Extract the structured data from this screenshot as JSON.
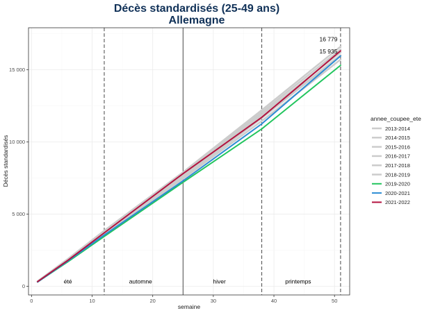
{
  "chart_data": {
    "type": "line",
    "title": "Décès standardisés (25-49 ans)",
    "subtitle": "Allemagne",
    "xlabel": "semaine",
    "ylabel": "Décès standardisés",
    "xlim": [
      -0.5,
      52.5
    ],
    "ylim": [
      -600,
      17900
    ],
    "x_ticks": [
      0,
      10,
      20,
      30,
      40,
      50
    ],
    "x_tick_labels": [
      "0",
      "10",
      "20",
      "30",
      "40",
      "50"
    ],
    "y_ticks": [
      0,
      5000,
      10000,
      15000
    ],
    "y_tick_labels": [
      "0",
      "5 000",
      "10 000",
      "15 000"
    ],
    "grid": true,
    "legend_position": "right",
    "legend_title": "annee_coupee_ete",
    "vlines": [
      {
        "x": 12,
        "style": "dashed"
      },
      {
        "x": 25,
        "style": "solid"
      },
      {
        "x": 38,
        "style": "dashed"
      },
      {
        "x": 51,
        "style": "dashed"
      }
    ],
    "season_labels": [
      {
        "text": "été",
        "x": 6,
        "y": 200
      },
      {
        "text": "automne",
        "x": 18,
        "y": 200
      },
      {
        "text": "hiver",
        "x": 31,
        "y": 200
      },
      {
        "text": "printemps",
        "x": 44,
        "y": 200
      }
    ],
    "annotations": [
      {
        "text": "16 779",
        "x": 49,
        "y": 16779
      },
      {
        "text": "15 935",
        "x": 49,
        "y": 15935
      }
    ],
    "series": [
      {
        "name": "2013-2014",
        "color": "#cccccc",
        "width": 2.5,
        "x": [
          1,
          6,
          12,
          25,
          38,
          51
        ],
        "y": [
          350,
          1900,
          3850,
          7900,
          12200,
          16600
        ]
      },
      {
        "name": "2014-2015",
        "color": "#cccccc",
        "width": 2.5,
        "x": [
          1,
          6,
          12,
          25,
          38,
          51
        ],
        "y": [
          350,
          1880,
          3800,
          7800,
          12050,
          16400
        ]
      },
      {
        "name": "2015-2016",
        "color": "#cccccc",
        "width": 2.5,
        "x": [
          1,
          6,
          12,
          25,
          38,
          51
        ],
        "y": [
          340,
          1850,
          3750,
          7700,
          11900,
          16200
        ]
      },
      {
        "name": "2016-2017",
        "color": "#cccccc",
        "width": 2.5,
        "x": [
          1,
          6,
          12,
          25,
          38,
          51
        ],
        "y": [
          330,
          1820,
          3700,
          7600,
          11750,
          16000
        ]
      },
      {
        "name": "2017-2018",
        "color": "#cccccc",
        "width": 2.5,
        "x": [
          1,
          6,
          12,
          25,
          38,
          51
        ],
        "y": [
          330,
          1800,
          3650,
          7550,
          11650,
          15950
        ]
      },
      {
        "name": "2018-2019",
        "color": "#cccccc",
        "width": 2.5,
        "x": [
          1,
          6,
          12,
          25,
          38,
          51
        ],
        "y": [
          320,
          1780,
          3600,
          7450,
          11450,
          15700
        ]
      },
      {
        "name": "2019-2020",
        "color": "#22c55e",
        "width": 2,
        "x": [
          1,
          6,
          12,
          25,
          38,
          51
        ],
        "y": [
          300,
          1700,
          3450,
          7200,
          10900,
          15300
        ]
      },
      {
        "name": "2020-2021",
        "color": "#2b8cd4",
        "width": 2,
        "x": [
          1,
          6,
          12,
          25,
          38,
          51
        ],
        "y": [
          300,
          1750,
          3550,
          7300,
          11250,
          15950
        ]
      },
      {
        "name": "2021-2022",
        "color": "#b3123f",
        "width": 2,
        "x": [
          1,
          6,
          12,
          25,
          38,
          51
        ],
        "y": [
          320,
          1800,
          3700,
          7800,
          11700,
          16300
        ]
      }
    ]
  }
}
